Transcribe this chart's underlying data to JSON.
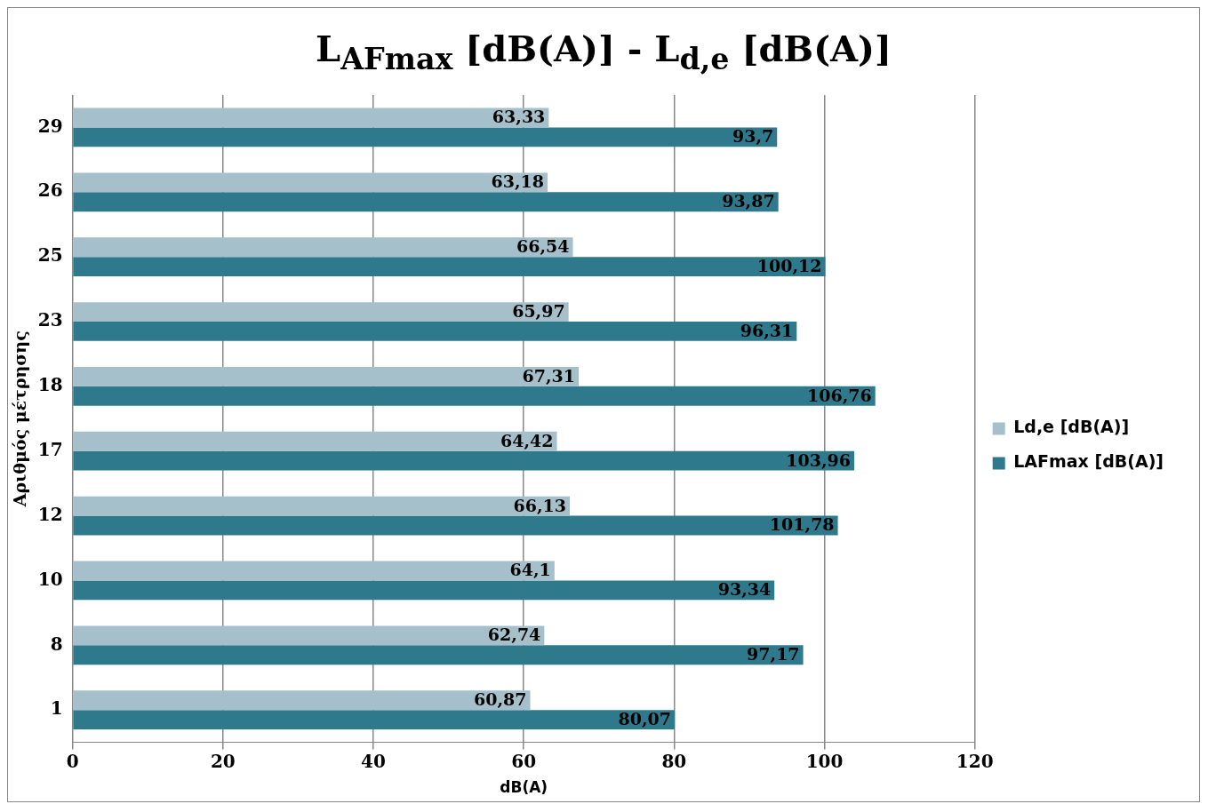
{
  "chart_data": {
    "type": "bar",
    "orientation": "horizontal",
    "title": "L$_{AFmax}$ [dB(A)] - L$_{d,e}$ [dB(A)]",
    "xlabel": "dB(A)",
    "ylabel": "Αριθμός μέτρησης",
    "categories": [
      "29",
      "26",
      "25",
      "23",
      "18",
      "17",
      "12",
      "10",
      "8",
      "1"
    ],
    "series": [
      {
        "name": "Ld,e [dB(A)]",
        "color": "#a5c0cb",
        "values": [
          63.33,
          63.18,
          66.54,
          65.97,
          67.31,
          64.42,
          66.13,
          64.1,
          62.74,
          60.87
        ],
        "value_labels": [
          "63,33",
          "63,18",
          "66,54",
          "65,97",
          "67,31",
          "64,42",
          "66,13",
          "64,1",
          "62,74",
          "60,87"
        ]
      },
      {
        "name": "LAFmax [dB(A)]",
        "color": "#2e7a8c",
        "values": [
          93.7,
          93.87,
          100.12,
          96.31,
          106.76,
          103.96,
          101.78,
          93.34,
          97.17,
          80.07
        ],
        "value_labels": [
          "93,7",
          "93,87",
          "100,12",
          "96,31",
          "106,76",
          "103,96",
          "101,78",
          "93,34",
          "97,17",
          "80,07"
        ]
      }
    ],
    "xlim": [
      0,
      120
    ],
    "xticks": [
      0,
      20,
      40,
      60,
      80,
      100,
      120
    ],
    "grid": "x",
    "legend": "right"
  }
}
